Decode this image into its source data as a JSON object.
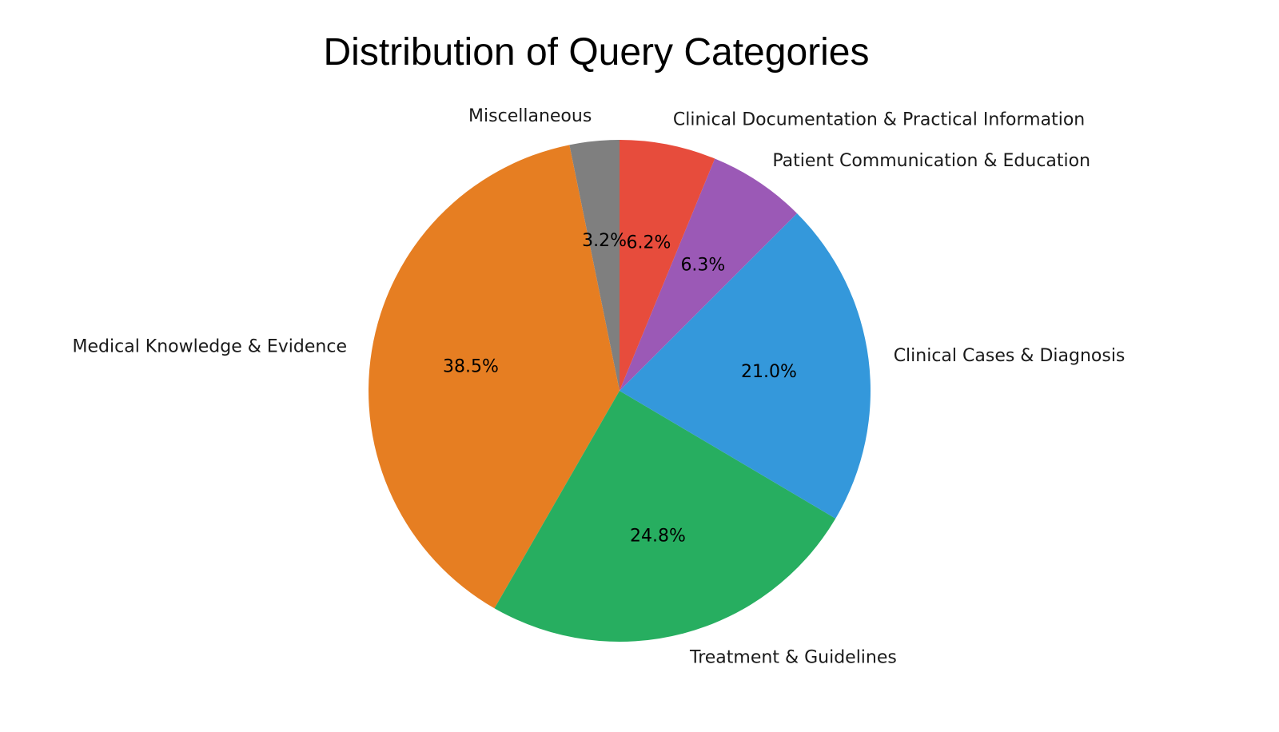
{
  "chart_data": {
    "type": "pie",
    "title": "Distribution of Query Categories",
    "start_angle_deg": 90,
    "direction": "counterclockwise",
    "slices": [
      {
        "label": "Miscellaneous",
        "value": 3.2,
        "value_label": "3.2%",
        "color": "#7f7f7f"
      },
      {
        "label": "Medical Knowledge & Evidence",
        "value": 38.5,
        "value_label": "38.5%",
        "color": "#e67e22"
      },
      {
        "label": "Treatment & Guidelines",
        "value": 24.8,
        "value_label": "24.8%",
        "color": "#27ae60"
      },
      {
        "label": "Clinical Cases & Diagnosis",
        "value": 21.0,
        "value_label": "21.0%",
        "color": "#3498db"
      },
      {
        "label": "Patient Communication & Education",
        "value": 6.3,
        "value_label": "6.3%",
        "color": "#9b59b6"
      },
      {
        "label": "Clinical Documentation & Practical Information",
        "value": 6.2,
        "value_label": "6.2%",
        "color": "#e74c3c"
      }
    ]
  }
}
